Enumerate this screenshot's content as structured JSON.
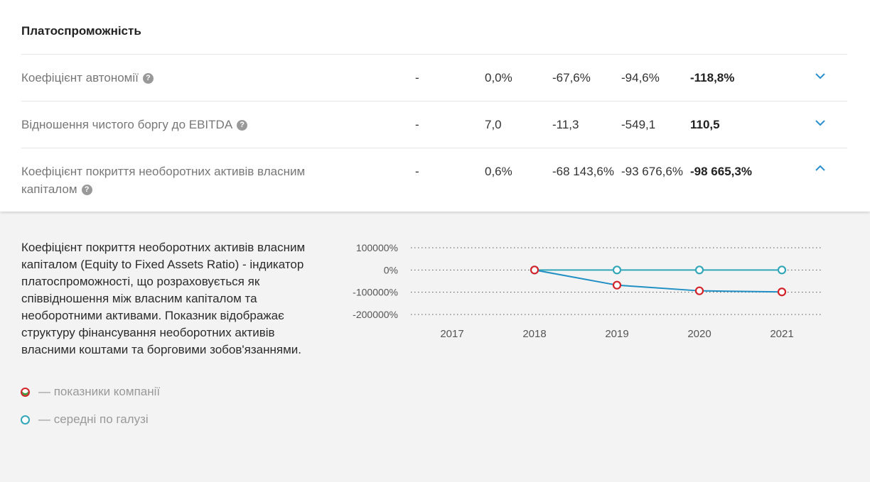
{
  "section": {
    "title": "Платоспроможність"
  },
  "rows": [
    {
      "label": "Коефіцієнт автономії",
      "label_line2": "",
      "v2017": "-",
      "v2018": "0,0%",
      "v2019": "-67,6%",
      "v2020": "-94,6%",
      "v2021": "-118,8%",
      "help": "?",
      "expanded": false
    },
    {
      "label": "Відношення чистого боргу до EBITDA",
      "label_line2": "",
      "v2017": "-",
      "v2018": "7,0",
      "v2019": "-11,3",
      "v2020": "-549,1",
      "v2021": "110,5",
      "help": "?",
      "expanded": false
    },
    {
      "label": "Коефіцієнт покриття необоротних активів власним",
      "label_line2": "капіталом",
      "v2017": "-",
      "v2018": "0,6%",
      "v2019": "-68 143,6%",
      "v2020": "-93 676,6%",
      "v2021": "-98 665,3%",
      "help": "?",
      "expanded": true
    }
  ],
  "detail": {
    "description": "Коефіцієнт покриття необоротних активів власним капіталом (Equity to Fixed Assets Ratio) - індикатор платоспроможності, що розраховується як співвідношення між власним капіталом та необоротними активами. Показник відображає структуру фінансування необоротних активів власними коштами та борговими зобов'язаннями."
  },
  "legend": {
    "company": "— показники компанії",
    "industry": "— середні по галузі"
  },
  "colors": {
    "company_marker": "#d3232a",
    "company_line": "#1f8fc4",
    "industry": "#31a6b8",
    "chevron": "#2a8fd0"
  },
  "chart_data": {
    "type": "line",
    "categories": [
      "2017",
      "2018",
      "2019",
      "2020",
      "2021"
    ],
    "y_ticks": [
      "100000%",
      "0%",
      "-100000%",
      "-200000%"
    ],
    "y_tick_values": [
      100000,
      0,
      -100000,
      -200000
    ],
    "ylim": [
      -200000,
      100000
    ],
    "grid": "dotted horizontal",
    "series": [
      {
        "role": "company",
        "values": [
          null,
          0.6,
          -68143.6,
          -93676.6,
          -98665.3
        ]
      },
      {
        "role": "industry",
        "values": [
          null,
          0,
          0,
          0,
          0
        ]
      }
    ]
  }
}
